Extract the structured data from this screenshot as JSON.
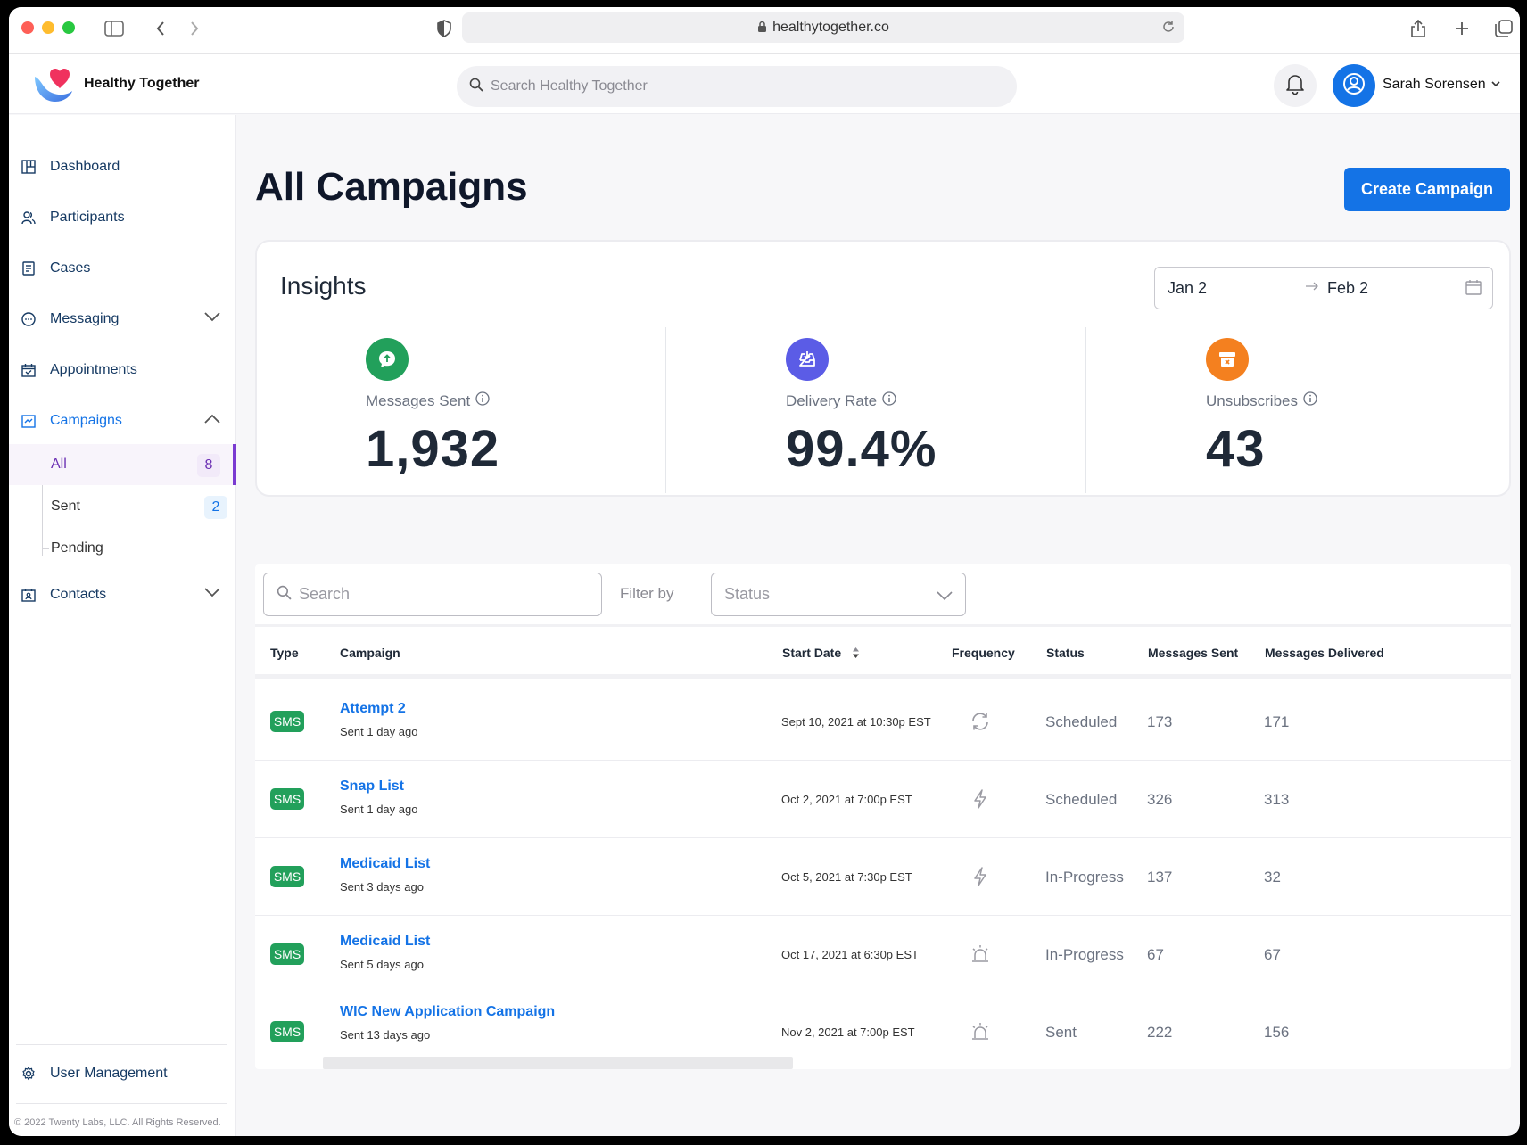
{
  "browser": {
    "url": "healthytogether.co"
  },
  "header": {
    "brand": "Healthy Together",
    "search_placeholder": "Search Healthy Together",
    "user_name": "Sarah Sorensen"
  },
  "sidebar": {
    "items": [
      {
        "label": "Dashboard",
        "icon": "dashboard-icon"
      },
      {
        "label": "Participants",
        "icon": "participants-icon"
      },
      {
        "label": "Cases",
        "icon": "cases-icon"
      },
      {
        "label": "Messaging",
        "icon": "messaging-icon"
      },
      {
        "label": "Appointments",
        "icon": "appointments-icon"
      },
      {
        "label": "Campaigns",
        "icon": "campaigns-icon"
      },
      {
        "label": "Contacts",
        "icon": "contacts-icon"
      }
    ],
    "campaign_subitems": [
      {
        "label": "All",
        "count": "8"
      },
      {
        "label": "Sent",
        "count": "2"
      },
      {
        "label": "Pending",
        "count": ""
      }
    ],
    "user_management": "User Management",
    "footer": "© 2022 Twenty Labs, LLC. All Rights Reserved."
  },
  "main": {
    "title": "All Campaigns",
    "create_button": "Create Campaign",
    "insights": {
      "title": "Insights",
      "date_from": "Jan 2",
      "date_to": "Feb 2",
      "metrics": [
        {
          "label": "Messages Sent",
          "value": "1,932",
          "color": "#22a05b"
        },
        {
          "label": "Delivery Rate",
          "value": "99.4%",
          "color": "#5b5ce6"
        },
        {
          "label": "Unsubscribes",
          "value": "43",
          "color": "#f4801f"
        }
      ]
    },
    "table": {
      "search_placeholder": "Search",
      "filter_label": "Filter by",
      "status_placeholder": "Status",
      "columns": [
        "Type",
        "Campaign",
        "Start Date",
        "Frequency",
        "Status",
        "Messages Sent",
        "Messages Delivered"
      ],
      "rows": [
        {
          "type": "SMS",
          "name": "Attempt 2",
          "sub": "Sent 1 day ago",
          "date": "Sept 10, 2021 at 10:30p  EST",
          "freq": "recurring",
          "status": "Scheduled",
          "sent": "173",
          "delivered": "171"
        },
        {
          "type": "SMS",
          "name": "Snap List",
          "sub": "Sent 1 day ago",
          "date": "Oct 2, 2021 at  7:00p  EST",
          "freq": "instant",
          "status": "Scheduled",
          "sent": "326",
          "delivered": "313"
        },
        {
          "type": "SMS",
          "name": "Medicaid List",
          "sub": "Sent 3 days ago",
          "date": "Oct 5, 2021 at 7:30p  EST",
          "freq": "instant",
          "status": "In-Progress",
          "sent": "137",
          "delivered": "32"
        },
        {
          "type": "SMS",
          "name": "Medicaid List",
          "sub": "Sent 5 days ago",
          "date": "Oct 17, 2021 at 6:30p  EST",
          "freq": "alert",
          "status": "In-Progress",
          "sent": "67",
          "delivered": "67"
        },
        {
          "type": "SMS",
          "name": "WIC New Application Campaign",
          "sub": "Sent 13 days ago",
          "date": "Nov 2, 2021 at 7:00p  EST",
          "freq": "alert",
          "status": "Sent",
          "sent": "222",
          "delivered": "156"
        }
      ]
    }
  },
  "colors": {
    "accent": "#1473e6",
    "active_purple": "#7a3bd1",
    "sms_green": "#22a05b"
  }
}
